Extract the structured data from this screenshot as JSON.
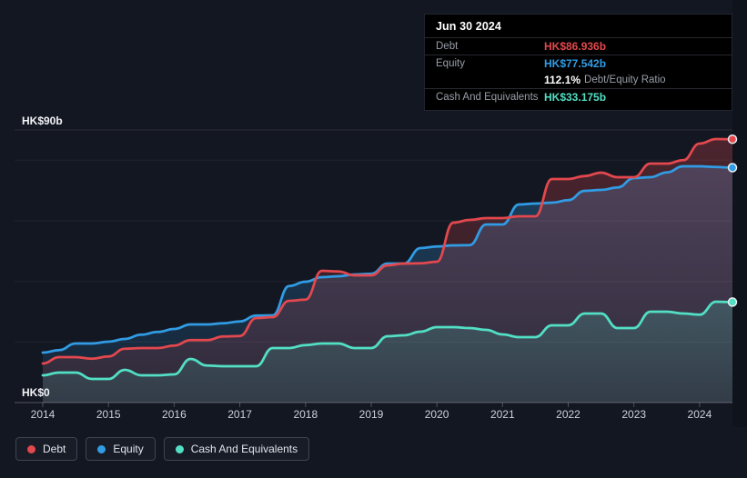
{
  "tooltip": {
    "date": "Jun 30 2024",
    "debt_label": "Debt",
    "debt_value": "HK$86.936b",
    "equity_label": "Equity",
    "equity_value": "HK$77.542b",
    "ratio_value": "112.1%",
    "ratio_label": "Debt/Equity Ratio",
    "cash_label": "Cash And Equivalents",
    "cash_value": "HK$33.175b"
  },
  "legend": {
    "items": [
      {
        "label": "Debt"
      },
      {
        "label": "Equity"
      },
      {
        "label": "Cash And Equivalents"
      }
    ]
  },
  "colors": {
    "background": "#131722",
    "tooltip_bg": "#000000",
    "debt": "#e2484d",
    "equity": "#319ce4",
    "cash": "#52dfc4"
  },
  "chart_data": {
    "type": "area",
    "title": "",
    "x_unit": "decimal_year",
    "x": [
      2014,
      2014.25,
      2014.5,
      2014.75,
      2015,
      2015.25,
      2015.5,
      2015.75,
      2016,
      2016.25,
      2016.5,
      2016.75,
      2017,
      2017.25,
      2017.5,
      2017.75,
      2018,
      2018.25,
      2018.5,
      2018.75,
      2019,
      2019.25,
      2019.5,
      2019.75,
      2020,
      2020.25,
      2020.5,
      2020.75,
      2021,
      2021.25,
      2021.5,
      2021.75,
      2022,
      2022.25,
      2022.5,
      2022.75,
      2023,
      2023.25,
      2023.5,
      2023.75,
      2024,
      2024.25,
      2024.5
    ],
    "series": [
      {
        "name": "Debt",
        "color": "#e2484d",
        "last_value_label": "HK$86.936b",
        "values": [
          12.9,
          15,
          15,
          14.5,
          15.2,
          17.8,
          18,
          18,
          18.8,
          20.6,
          20.6,
          21.8,
          22,
          27.9,
          28.2,
          33.6,
          34,
          43.5,
          43.3,
          42,
          42,
          45.3,
          45.9,
          46,
          46.5,
          59.4,
          60.3,
          60.9,
          60.9,
          61.5,
          61.5,
          73.8,
          73.8,
          74.8,
          75.9,
          74.4,
          74.4,
          78.9,
          78.9,
          80,
          85.5,
          87,
          86.936
        ]
      },
      {
        "name": "Equity",
        "color": "#319ce4",
        "last_value_label": "HK$77.542b",
        "values": [
          16.5,
          17.3,
          19.5,
          19.5,
          20.1,
          21,
          22.4,
          23.3,
          24.3,
          25.8,
          25.8,
          26.2,
          26.8,
          28.7,
          28.8,
          38.5,
          39.9,
          41.4,
          41.7,
          42.3,
          42.5,
          45.9,
          45.9,
          51,
          51.5,
          51.9,
          52,
          58.8,
          58.8,
          65.4,
          65.7,
          66,
          66.8,
          69.9,
          70.2,
          71,
          74.1,
          74.4,
          76,
          78,
          78,
          77.8,
          77.542
        ]
      },
      {
        "name": "Cash And Equivalents",
        "color": "#52dfc4",
        "last_value_label": "HK$33.175b",
        "values": [
          9,
          9.9,
          9.9,
          7.8,
          7.8,
          10.8,
          9,
          9,
          9.3,
          14.4,
          12.2,
          12,
          12,
          12,
          18,
          18,
          19,
          19.5,
          19.5,
          18,
          18,
          21.9,
          22.2,
          23.4,
          24.9,
          24.9,
          24.6,
          24,
          22.5,
          21.6,
          21.6,
          25.5,
          25.5,
          29.4,
          29.4,
          24.6,
          24.6,
          30,
          30,
          29.4,
          29,
          33.3,
          33.175
        ]
      }
    ],
    "ylim": [
      0,
      90
    ],
    "y_gridlines": [
      0,
      20,
      40,
      60,
      80,
      90
    ],
    "y_axis_labels": [
      {
        "value": 90,
        "label": "HK$90b"
      },
      {
        "value": 0,
        "label": "HK$0"
      }
    ],
    "x_tick_values": [
      2014,
      2015,
      2016,
      2017,
      2018,
      2019,
      2020,
      2021,
      2022,
      2023,
      2024
    ],
    "x_tick_labels": [
      "2014",
      "2015",
      "2016",
      "2017",
      "2018",
      "2019",
      "2020",
      "2021",
      "2022",
      "2023",
      "2024"
    ],
    "grid": true,
    "legend_position": "bottom-left",
    "debt_equity_ratio": "112.1%"
  }
}
